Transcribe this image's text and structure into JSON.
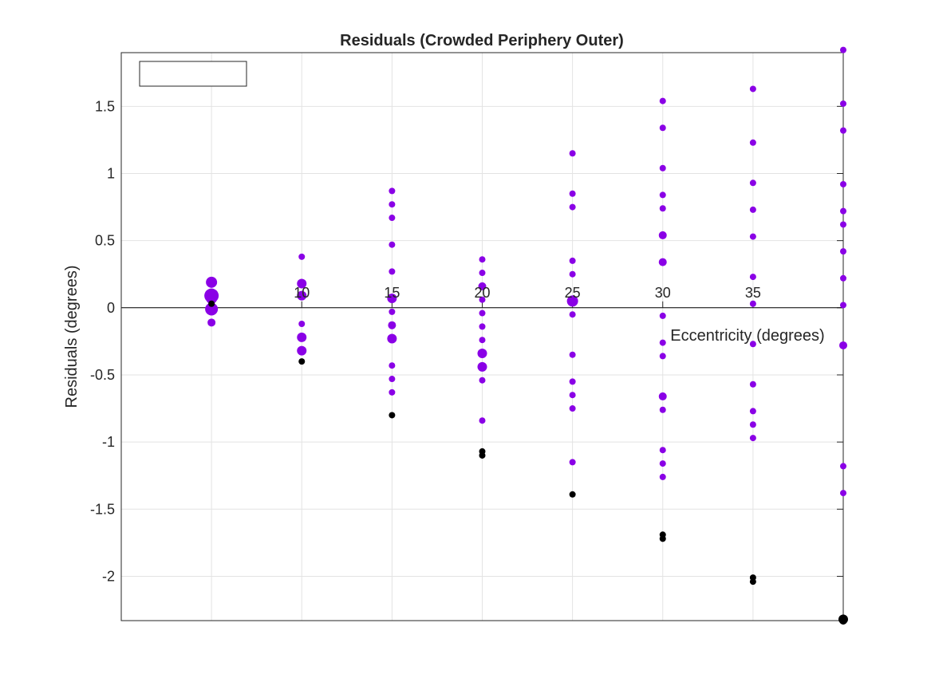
{
  "chart_data": {
    "type": "scatter",
    "title": "Residuals (Crowded Periphery Outer)",
    "xlabel": "Eccentricity (degrees)",
    "ylabel": "Residuals (degrees)",
    "xlim": [
      0,
      40
    ],
    "ylim": [
      -2.33,
      1.9
    ],
    "x_ticks": [
      5,
      10,
      15,
      20,
      25,
      30,
      35
    ],
    "x_tick_labels": [
      "",
      "10",
      "15",
      "20",
      "25",
      "30",
      "35"
    ],
    "y_ticks": [
      -2,
      -1.5,
      -1,
      -0.5,
      0,
      0.5,
      1,
      1.5
    ],
    "y_tick_labels": [
      "-2",
      "-1.5",
      "-1",
      "-0.5",
      "0",
      "0.5",
      "1",
      "1.5"
    ],
    "grid": true,
    "legend": {
      "placement": "top-left",
      "entries": []
    },
    "colors": {
      "primary": "#8a00e6",
      "secondary": "#000000",
      "zero_line": "#000000"
    },
    "series": [
      {
        "color": "#8a00e6",
        "points": [
          {
            "x": 5,
            "y": 0.19,
            "s": 7
          },
          {
            "x": 5,
            "y": 0.09,
            "s": 9
          },
          {
            "x": 5,
            "y": 0.07,
            "s": 7
          },
          {
            "x": 5,
            "y": -0.01,
            "s": 8
          },
          {
            "x": 5,
            "y": -0.11,
            "s": 5
          },
          {
            "x": 10,
            "y": 0.38,
            "s": 4
          },
          {
            "x": 10,
            "y": 0.18,
            "s": 6
          },
          {
            "x": 10,
            "y": 0.09,
            "s": 6
          },
          {
            "x": 10,
            "y": -0.12,
            "s": 4
          },
          {
            "x": 10,
            "y": -0.22,
            "s": 6
          },
          {
            "x": 10,
            "y": -0.32,
            "s": 6
          },
          {
            "x": 15,
            "y": 0.87,
            "s": 4
          },
          {
            "x": 15,
            "y": 0.77,
            "s": 4
          },
          {
            "x": 15,
            "y": 0.67,
            "s": 4
          },
          {
            "x": 15,
            "y": 0.47,
            "s": 4
          },
          {
            "x": 15,
            "y": 0.27,
            "s": 4
          },
          {
            "x": 15,
            "y": 0.07,
            "s": 6
          },
          {
            "x": 15,
            "y": -0.03,
            "s": 4
          },
          {
            "x": 15,
            "y": -0.13,
            "s": 5
          },
          {
            "x": 15,
            "y": -0.23,
            "s": 6
          },
          {
            "x": 15,
            "y": -0.43,
            "s": 4
          },
          {
            "x": 15,
            "y": -0.53,
            "s": 4
          },
          {
            "x": 15,
            "y": -0.63,
            "s": 4
          },
          {
            "x": 20,
            "y": 0.36,
            "s": 4
          },
          {
            "x": 20,
            "y": 0.26,
            "s": 4
          },
          {
            "x": 20,
            "y": 0.16,
            "s": 5
          },
          {
            "x": 20,
            "y": 0.06,
            "s": 4
          },
          {
            "x": 20,
            "y": -0.04,
            "s": 4
          },
          {
            "x": 20,
            "y": -0.14,
            "s": 4
          },
          {
            "x": 20,
            "y": -0.24,
            "s": 4
          },
          {
            "x": 20,
            "y": -0.34,
            "s": 6
          },
          {
            "x": 20,
            "y": -0.44,
            "s": 6
          },
          {
            "x": 20,
            "y": -0.54,
            "s": 4
          },
          {
            "x": 20,
            "y": -0.84,
            "s": 4
          },
          {
            "x": 25,
            "y": 1.15,
            "s": 4
          },
          {
            "x": 25,
            "y": 0.85,
            "s": 4
          },
          {
            "x": 25,
            "y": 0.75,
            "s": 4
          },
          {
            "x": 25,
            "y": 0.35,
            "s": 4
          },
          {
            "x": 25,
            "y": 0.25,
            "s": 4
          },
          {
            "x": 25,
            "y": 0.05,
            "s": 7
          },
          {
            "x": 25,
            "y": -0.05,
            "s": 4
          },
          {
            "x": 25,
            "y": -0.35,
            "s": 4
          },
          {
            "x": 25,
            "y": -0.55,
            "s": 4
          },
          {
            "x": 25,
            "y": -0.65,
            "s": 4
          },
          {
            "x": 25,
            "y": -0.75,
            "s": 4
          },
          {
            "x": 25,
            "y": -1.15,
            "s": 4
          },
          {
            "x": 30,
            "y": 1.54,
            "s": 4
          },
          {
            "x": 30,
            "y": 1.34,
            "s": 4
          },
          {
            "x": 30,
            "y": 1.04,
            "s": 4
          },
          {
            "x": 30,
            "y": 0.84,
            "s": 4
          },
          {
            "x": 30,
            "y": 0.74,
            "s": 4
          },
          {
            "x": 30,
            "y": 0.54,
            "s": 5
          },
          {
            "x": 30,
            "y": 0.34,
            "s": 5
          },
          {
            "x": 30,
            "y": -0.06,
            "s": 4
          },
          {
            "x": 30,
            "y": -0.26,
            "s": 4
          },
          {
            "x": 30,
            "y": -0.36,
            "s": 4
          },
          {
            "x": 30,
            "y": -0.66,
            "s": 5
          },
          {
            "x": 30,
            "y": -0.76,
            "s": 4
          },
          {
            "x": 30,
            "y": -1.06,
            "s": 4
          },
          {
            "x": 30,
            "y": -1.16,
            "s": 4
          },
          {
            "x": 30,
            "y": -1.26,
            "s": 4
          },
          {
            "x": 35,
            "y": 1.63,
            "s": 4
          },
          {
            "x": 35,
            "y": 1.23,
            "s": 4
          },
          {
            "x": 35,
            "y": 0.93,
            "s": 4
          },
          {
            "x": 35,
            "y": 0.73,
            "s": 4
          },
          {
            "x": 35,
            "y": 0.53,
            "s": 4
          },
          {
            "x": 35,
            "y": 0.23,
            "s": 4
          },
          {
            "x": 35,
            "y": 0.03,
            "s": 4
          },
          {
            "x": 35,
            "y": -0.27,
            "s": 4
          },
          {
            "x": 35,
            "y": -0.57,
            "s": 4
          },
          {
            "x": 35,
            "y": -0.77,
            "s": 4
          },
          {
            "x": 35,
            "y": -0.87,
            "s": 4
          },
          {
            "x": 35,
            "y": -0.97,
            "s": 4
          },
          {
            "x": 40,
            "y": 1.92,
            "s": 4
          },
          {
            "x": 40,
            "y": 1.52,
            "s": 4
          },
          {
            "x": 40,
            "y": 1.32,
            "s": 4
          },
          {
            "x": 40,
            "y": 0.92,
            "s": 4
          },
          {
            "x": 40,
            "y": 0.72,
            "s": 4
          },
          {
            "x": 40,
            "y": 0.62,
            "s": 4
          },
          {
            "x": 40,
            "y": 0.42,
            "s": 4
          },
          {
            "x": 40,
            "y": 0.22,
            "s": 4
          },
          {
            "x": 40,
            "y": 0.02,
            "s": 4
          },
          {
            "x": 40,
            "y": -0.28,
            "s": 5
          },
          {
            "x": 40,
            "y": -1.18,
            "s": 4
          },
          {
            "x": 40,
            "y": -1.38,
            "s": 4
          }
        ]
      },
      {
        "color": "#000000",
        "points": [
          {
            "x": 5,
            "y": 0.03,
            "s": 4
          },
          {
            "x": 10,
            "y": -0.4,
            "s": 4
          },
          {
            "x": 15,
            "y": -0.8,
            "s": 4
          },
          {
            "x": 20,
            "y": -1.07,
            "s": 4
          },
          {
            "x": 20,
            "y": -1.1,
            "s": 4
          },
          {
            "x": 25,
            "y": -1.39,
            "s": 4
          },
          {
            "x": 30,
            "y": -1.69,
            "s": 4
          },
          {
            "x": 30,
            "y": -1.72,
            "s": 4
          },
          {
            "x": 35,
            "y": -2.01,
            "s": 4
          },
          {
            "x": 35,
            "y": -2.04,
            "s": 4
          },
          {
            "x": 40,
            "y": -2.32,
            "s": 6
          },
          {
            "x": 40,
            "y": -2.33,
            "s": 5
          }
        ]
      }
    ]
  }
}
